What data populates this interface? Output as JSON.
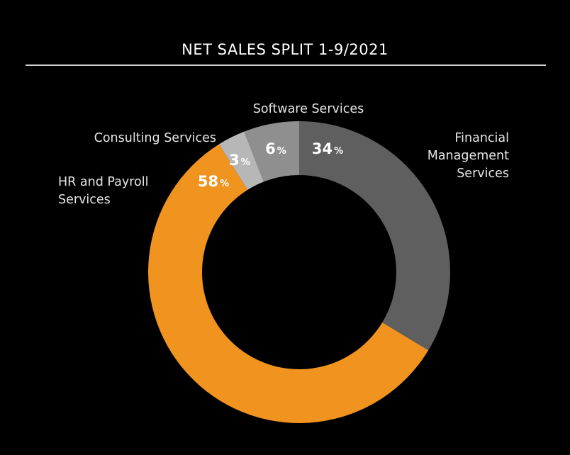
{
  "chart_data": {
    "type": "pie",
    "title": "NET SALES SPLIT 1-9/2021",
    "slices": [
      {
        "name": "Financial Management Services",
        "label_lines": [
          "Financial",
          "Management",
          "Services"
        ],
        "value": 34,
        "color": "#5f5f5f",
        "pct_color": "#ffffff"
      },
      {
        "name": "HR and Payroll Services",
        "label_lines": [
          "HR and Payroll",
          "Services"
        ],
        "value": 58,
        "color": "#f0931f",
        "pct_color": "#ffffff"
      },
      {
        "name": "Consulting Services",
        "label_lines": [
          "Consulting Services"
        ],
        "value": 3,
        "color": "#b7b7b7",
        "pct_color": "#ffffff"
      },
      {
        "name": "Software Services",
        "label_lines": [
          "Software Services"
        ],
        "value": 6,
        "color": "#8f8f8f",
        "pct_color": "#ffffff"
      }
    ],
    "percent_symbol": "%",
    "background": "#000000"
  }
}
